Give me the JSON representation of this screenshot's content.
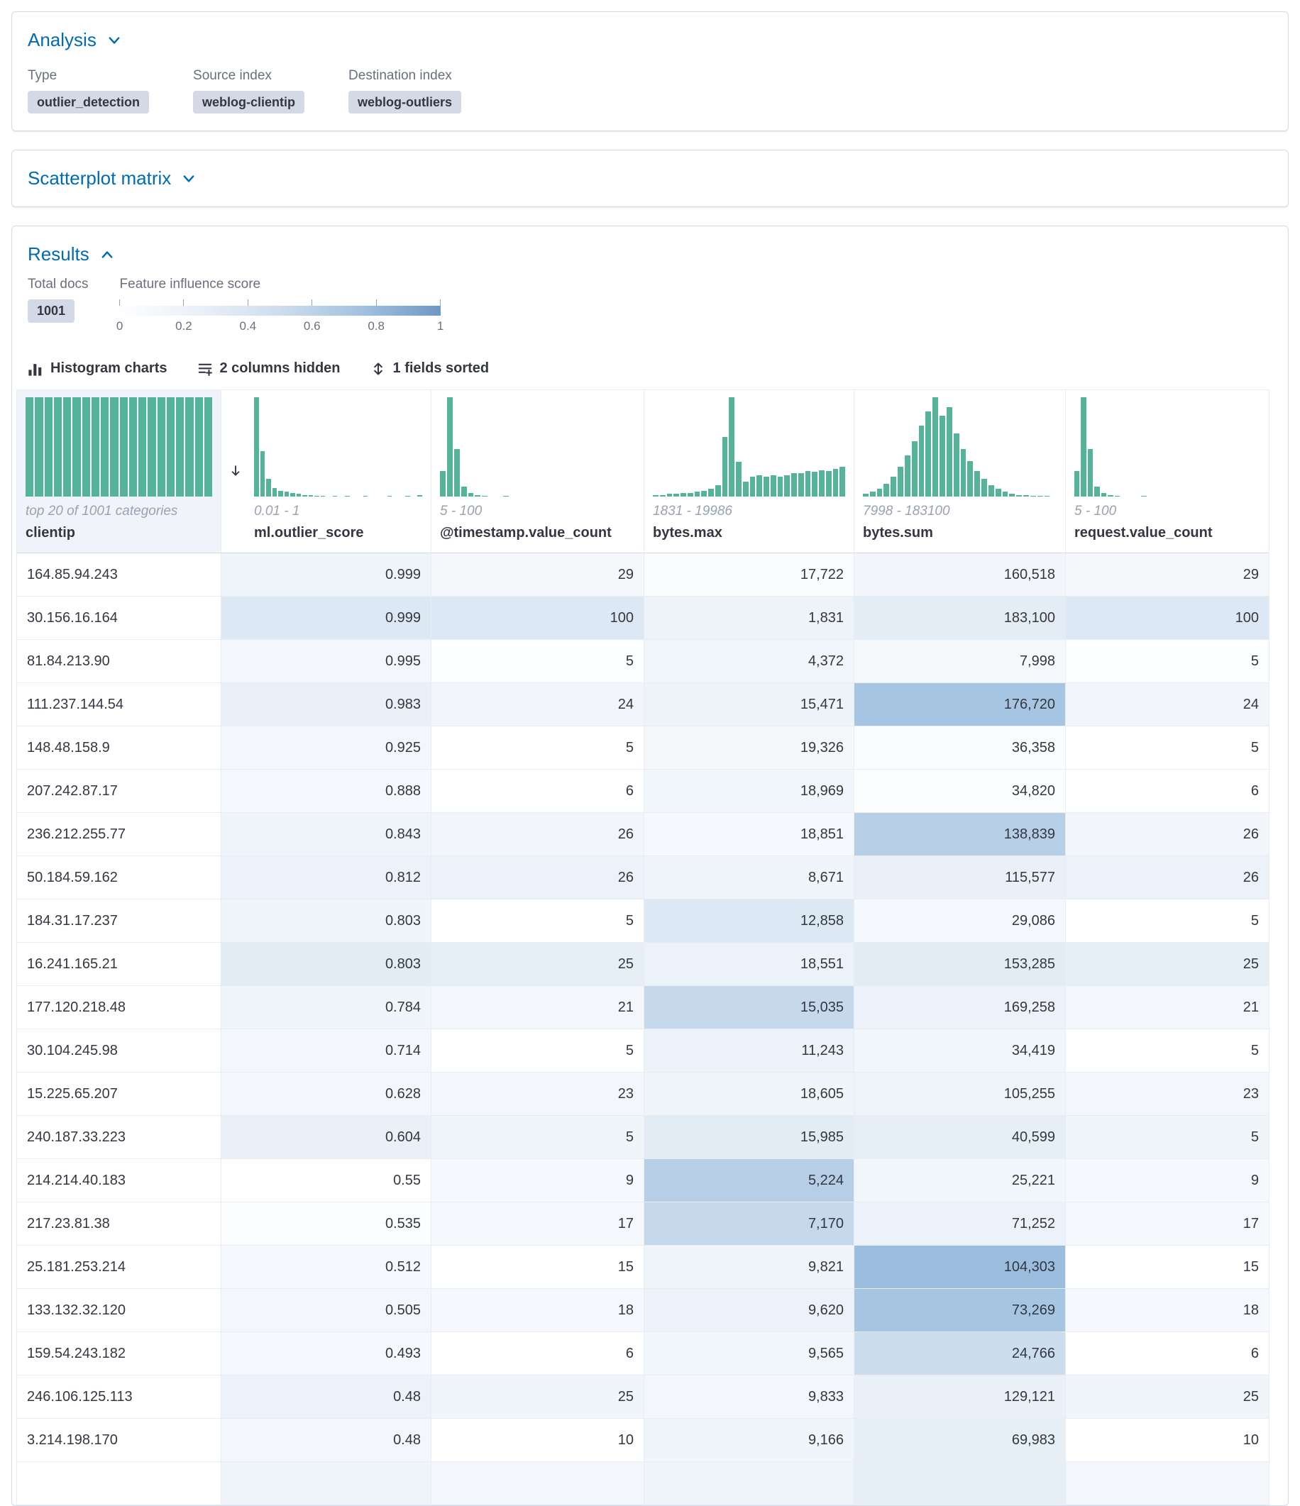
{
  "panels": {
    "analysis": {
      "title": "Analysis",
      "fields": [
        {
          "label": "Type",
          "value": "outlier_detection"
        },
        {
          "label": "Source index",
          "value": "weblog-clientip"
        },
        {
          "label": "Destination index",
          "value": "weblog-outliers"
        }
      ]
    },
    "scatterplot": {
      "title": "Scatterplot matrix"
    },
    "results": {
      "title": "Results",
      "total_docs": {
        "label": "Total docs",
        "value": "1001"
      },
      "legend": {
        "label": "Feature influence score",
        "ticks": [
          "0",
          "0.2",
          "0.4",
          "0.6",
          "0.8",
          "1"
        ],
        "gradient_start": "#fdfeff",
        "gradient_end": "#6f97c5"
      },
      "toolbar": [
        {
          "label": "Histogram charts",
          "icon": "histogram-icon"
        },
        {
          "label": "2 columns hidden",
          "icon": "columns-hidden-icon"
        },
        {
          "label": "1 fields sorted",
          "icon": "sort-fields-icon"
        }
      ]
    }
  },
  "colors": {
    "accent_blue": "#006bb4",
    "histogram_green": "#54b399",
    "badge_bg": "#d3dae6",
    "panel_border": "#d3dae6"
  },
  "grid": {
    "columns": [
      {
        "name": "clientip",
        "range": "top 20 of 1001 categories",
        "numeric": false,
        "sorted": false,
        "histogram": [
          100,
          100,
          100,
          100,
          100,
          100,
          100,
          100,
          100,
          100,
          100,
          100,
          100,
          100,
          100,
          100,
          100,
          100,
          100,
          100
        ]
      },
      {
        "name": "ml.outlier_score",
        "range": "0.01 - 1",
        "numeric": true,
        "sorted": true,
        "histogram": [
          100,
          46,
          18,
          9,
          6,
          5,
          4,
          3,
          2,
          2,
          1,
          1,
          0,
          1,
          0,
          1,
          0,
          0,
          1,
          0,
          0,
          0,
          1,
          0,
          0,
          1,
          0,
          2
        ]
      },
      {
        "name": "@timestamp.value_count",
        "range": "5 - 100",
        "numeric": true,
        "sorted": false,
        "histogram": [
          26,
          100,
          48,
          10,
          4,
          2,
          1,
          0,
          0,
          1,
          0,
          0,
          0,
          0,
          0,
          0,
          0,
          0,
          0,
          0,
          0,
          0,
          0,
          0,
          0,
          0,
          0,
          0
        ]
      },
      {
        "name": "bytes.max",
        "range": "1831 - 19986",
        "numeric": true,
        "sorted": false,
        "histogram": [
          2,
          2,
          3,
          3,
          4,
          4,
          5,
          6,
          8,
          12,
          60,
          100,
          35,
          15,
          20,
          22,
          20,
          22,
          20,
          22,
          24,
          24,
          26,
          25,
          27,
          26,
          28,
          30
        ]
      },
      {
        "name": "bytes.sum",
        "range": "7998 - 183100",
        "numeric": true,
        "sorted": false,
        "histogram": [
          3,
          5,
          8,
          13,
          20,
          30,
          42,
          56,
          72,
          86,
          100,
          82,
          90,
          64,
          48,
          36,
          26,
          18,
          12,
          8,
          5,
          3,
          2,
          2,
          1,
          1,
          1,
          0
        ]
      },
      {
        "name": "request.value_count",
        "range": "5 - 100",
        "numeric": true,
        "sorted": false,
        "histogram": [
          26,
          100,
          48,
          10,
          4,
          2,
          1,
          0,
          0,
          0,
          1,
          0,
          0,
          0,
          0,
          0,
          0,
          0,
          0,
          0,
          0,
          0,
          0,
          0,
          0,
          0,
          0,
          0
        ]
      }
    ],
    "rows": [
      {
        "cells": [
          "164.85.94.243",
          "0.999",
          "29",
          "17,722",
          "160,518",
          "29"
        ],
        "colors": [
          "#ffffff",
          "#eef4fa",
          "#f4f8fb",
          "#fafcfd",
          "#f2f6fa",
          "#f4f8fb"
        ]
      },
      {
        "cells": [
          "30.156.16.164",
          "0.999",
          "100",
          "1,831",
          "183,100",
          "100"
        ],
        "colors": [
          "#ffffff",
          "#dce8f3",
          "#dce8f3",
          "#edf3f9",
          "#e4edf6",
          "#dce8f3"
        ]
      },
      {
        "cells": [
          "81.84.213.90",
          "0.995",
          "5",
          "4,372",
          "7,998",
          "5"
        ],
        "colors": [
          "#ffffff",
          "#f3f7fb",
          "#fdfeff",
          "#f1f6fa",
          "#f6f9fc",
          "#fdfeff"
        ]
      },
      {
        "cells": [
          "111.237.144.54",
          "0.983",
          "24",
          "15,471",
          "176,720",
          "24"
        ],
        "colors": [
          "#ffffff",
          "#e9f0f8",
          "#f2f6fa",
          "#ecf3f9",
          "#a6c5e2",
          "#f2f6fa"
        ]
      },
      {
        "cells": [
          "148.48.158.9",
          "0.925",
          "5",
          "19,326",
          "36,358",
          "5"
        ],
        "colors": [
          "#ffffff",
          "#f3f7fb",
          "#ffffff",
          "#f4f8fb",
          "#fafcfe",
          "#ffffff"
        ]
      },
      {
        "cells": [
          "207.242.87.17",
          "0.888",
          "6",
          "18,969",
          "34,820",
          "6"
        ],
        "colors": [
          "#ffffff",
          "#f5f8fc",
          "#ffffff",
          "#f1f6fa",
          "#fbfdfe",
          "#ffffff"
        ]
      },
      {
        "cells": [
          "236.212.255.77",
          "0.843",
          "26",
          "18,851",
          "138,839",
          "26"
        ],
        "colors": [
          "#ffffff",
          "#eff4fa",
          "#f2f6fa",
          "#f5f8fc",
          "#b6cfe7",
          "#f2f6fa"
        ]
      },
      {
        "cells": [
          "50.184.59.162",
          "0.812",
          "26",
          "8,671",
          "115,577",
          "26"
        ],
        "colors": [
          "#ffffff",
          "#ecf2f9",
          "#ecf2f9",
          "#f0f5fa",
          "#e9f0f7",
          "#ecf2f9"
        ]
      },
      {
        "cells": [
          "184.31.17.237",
          "0.803",
          "5",
          "12,858",
          "29,086",
          "5"
        ],
        "colors": [
          "#ffffff",
          "#f0f5fa",
          "#ffffff",
          "#dce8f3",
          "#f5f8fc",
          "#ffffff"
        ]
      },
      {
        "cells": [
          "16.241.165.21",
          "0.803",
          "25",
          "18,551",
          "153,285",
          "25"
        ],
        "colors": [
          "#ffffff",
          "#e2ecf5",
          "#e6eef6",
          "#ecf2f9",
          "#e2ecf5",
          "#e6eef6"
        ]
      },
      {
        "cells": [
          "177.120.218.48",
          "0.784",
          "21",
          "15,035",
          "169,258",
          "21"
        ],
        "colors": [
          "#ffffff",
          "#f0f5fa",
          "#f3f7fb",
          "#c5d8ec",
          "#ecf2f9",
          "#f3f7fb"
        ]
      },
      {
        "cells": [
          "30.104.245.98",
          "0.714",
          "5",
          "11,243",
          "34,419",
          "5"
        ],
        "colors": [
          "#ffffff",
          "#f3f7fb",
          "#ffffff",
          "#ecf2f9",
          "#f1f6fa",
          "#ffffff"
        ]
      },
      {
        "cells": [
          "15.225.65.207",
          "0.628",
          "23",
          "18,605",
          "105,255",
          "23"
        ],
        "colors": [
          "#ffffff",
          "#f3f7fb",
          "#f3f7fb",
          "#f0f5fa",
          "#eff4fa",
          "#f3f7fb"
        ]
      },
      {
        "cells": [
          "240.187.33.223",
          "0.604",
          "5",
          "15,985",
          "40,599",
          "5"
        ],
        "colors": [
          "#ffffff",
          "#e9f0f7",
          "#f0f5fa",
          "#e2ecf5",
          "#e6eef6",
          "#f0f5fa"
        ]
      },
      {
        "cells": [
          "214.214.40.183",
          "0.55",
          "9",
          "5,224",
          "25,221",
          "9"
        ],
        "colors": [
          "#ffffff",
          "#ffffff",
          "#f5f8fc",
          "#b6cfe7",
          "#f1f6fa",
          "#f5f8fc"
        ]
      },
      {
        "cells": [
          "217.23.81.38",
          "0.535",
          "17",
          "7,170",
          "71,252",
          "17"
        ],
        "colors": [
          "#ffffff",
          "#fbfdfe",
          "#f5f8fc",
          "#c5d8ec",
          "#ecf2f9",
          "#f5f8fc"
        ]
      },
      {
        "cells": [
          "25.181.253.214",
          "0.512",
          "15",
          "9,821",
          "104,303",
          "15"
        ],
        "colors": [
          "#ffffff",
          "#f5f8fc",
          "#ffffff",
          "#f0f5fa",
          "#9cbede",
          "#ffffff"
        ]
      },
      {
        "cells": [
          "133.132.32.120",
          "0.505",
          "18",
          "9,620",
          "73,269",
          "18"
        ],
        "colors": [
          "#ffffff",
          "#f3f7fb",
          "#f5f8fc",
          "#ecf2f9",
          "#a6c5e2",
          "#f5f8fc"
        ]
      },
      {
        "cells": [
          "159.54.243.182",
          "0.493",
          "6",
          "9,565",
          "24,766",
          "6"
        ],
        "colors": [
          "#ffffff",
          "#f5f8fc",
          "#ffffff",
          "#f1f6fa",
          "#ccdded",
          "#ffffff"
        ]
      },
      {
        "cells": [
          "246.106.125.113",
          "0.48",
          "25",
          "9,833",
          "129,121",
          "25"
        ],
        "colors": [
          "#ffffff",
          "#ecf2f9",
          "#f0f5fa",
          "#f3f7fb",
          "#e9f0f7",
          "#f0f5fa"
        ]
      },
      {
        "cells": [
          "3.214.198.170",
          "0.48",
          "10",
          "9,166",
          "69,983",
          "10"
        ],
        "colors": [
          "#ffffff",
          "#f3f7fb",
          "#ffffff",
          "#f0f5fa",
          "#e6eef6",
          "#ffffff"
        ]
      }
    ],
    "partial_row_colors": [
      "#ffffff",
      "#eef4f9",
      "#f3f7fb",
      "#eff4fa",
      "#e6eef6",
      "#f3f7fb"
    ]
  }
}
